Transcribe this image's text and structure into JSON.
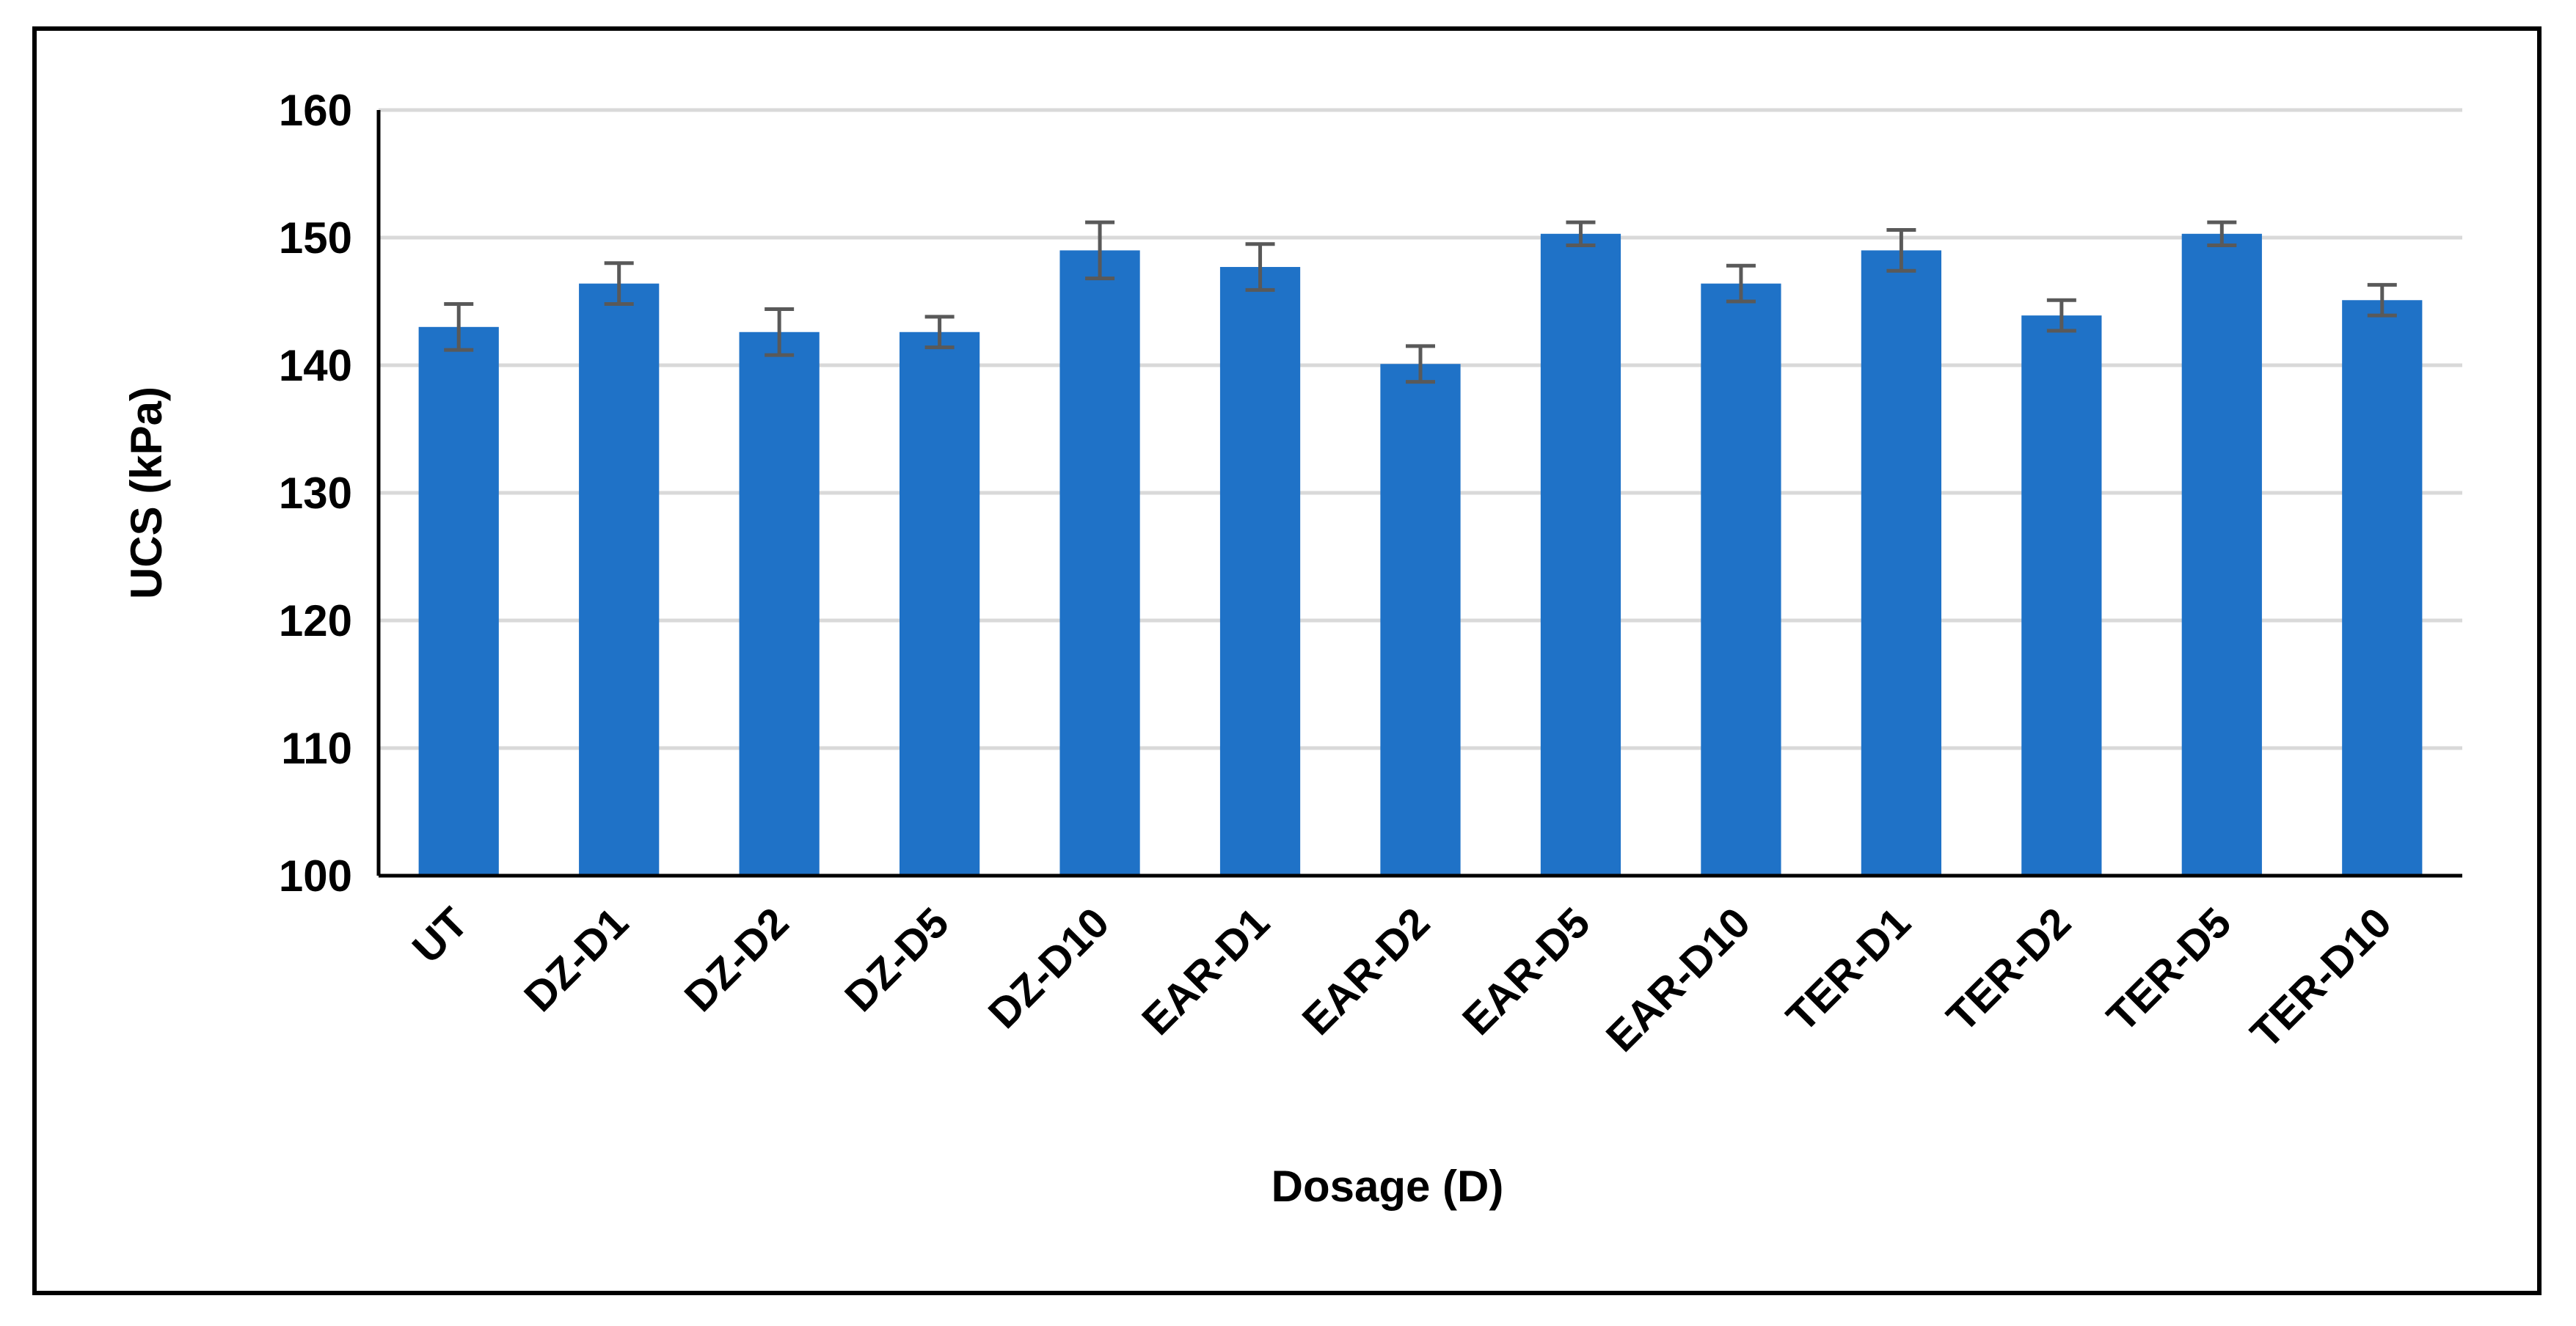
{
  "chart_data": {
    "type": "bar",
    "title": "",
    "xlabel": "Dosage (D)",
    "ylabel": "UCS (kPa)",
    "ylim": [
      100,
      160
    ],
    "yticks": [
      100,
      110,
      120,
      130,
      140,
      150,
      160
    ],
    "grid": true,
    "legend": "none",
    "bar_color": "#1f72c7",
    "error_color": "#595959",
    "categories": [
      "UT",
      "DZ-D1",
      "DZ-D2",
      "DZ-D5",
      "DZ-D10",
      "EAR-D1",
      "EAR-D2",
      "EAR-D5",
      "EAR-D10",
      "TER-D1",
      "TER-D2",
      "TER-D5",
      "TER-D10"
    ],
    "values": [
      143.0,
      146.4,
      142.6,
      142.6,
      149.0,
      147.7,
      140.1,
      150.3,
      146.4,
      149.0,
      143.9,
      150.3,
      145.1
    ],
    "errors": [
      1.8,
      1.6,
      1.8,
      1.2,
      2.2,
      1.8,
      1.4,
      0.9,
      1.4,
      1.6,
      1.2,
      0.9,
      1.2
    ]
  }
}
